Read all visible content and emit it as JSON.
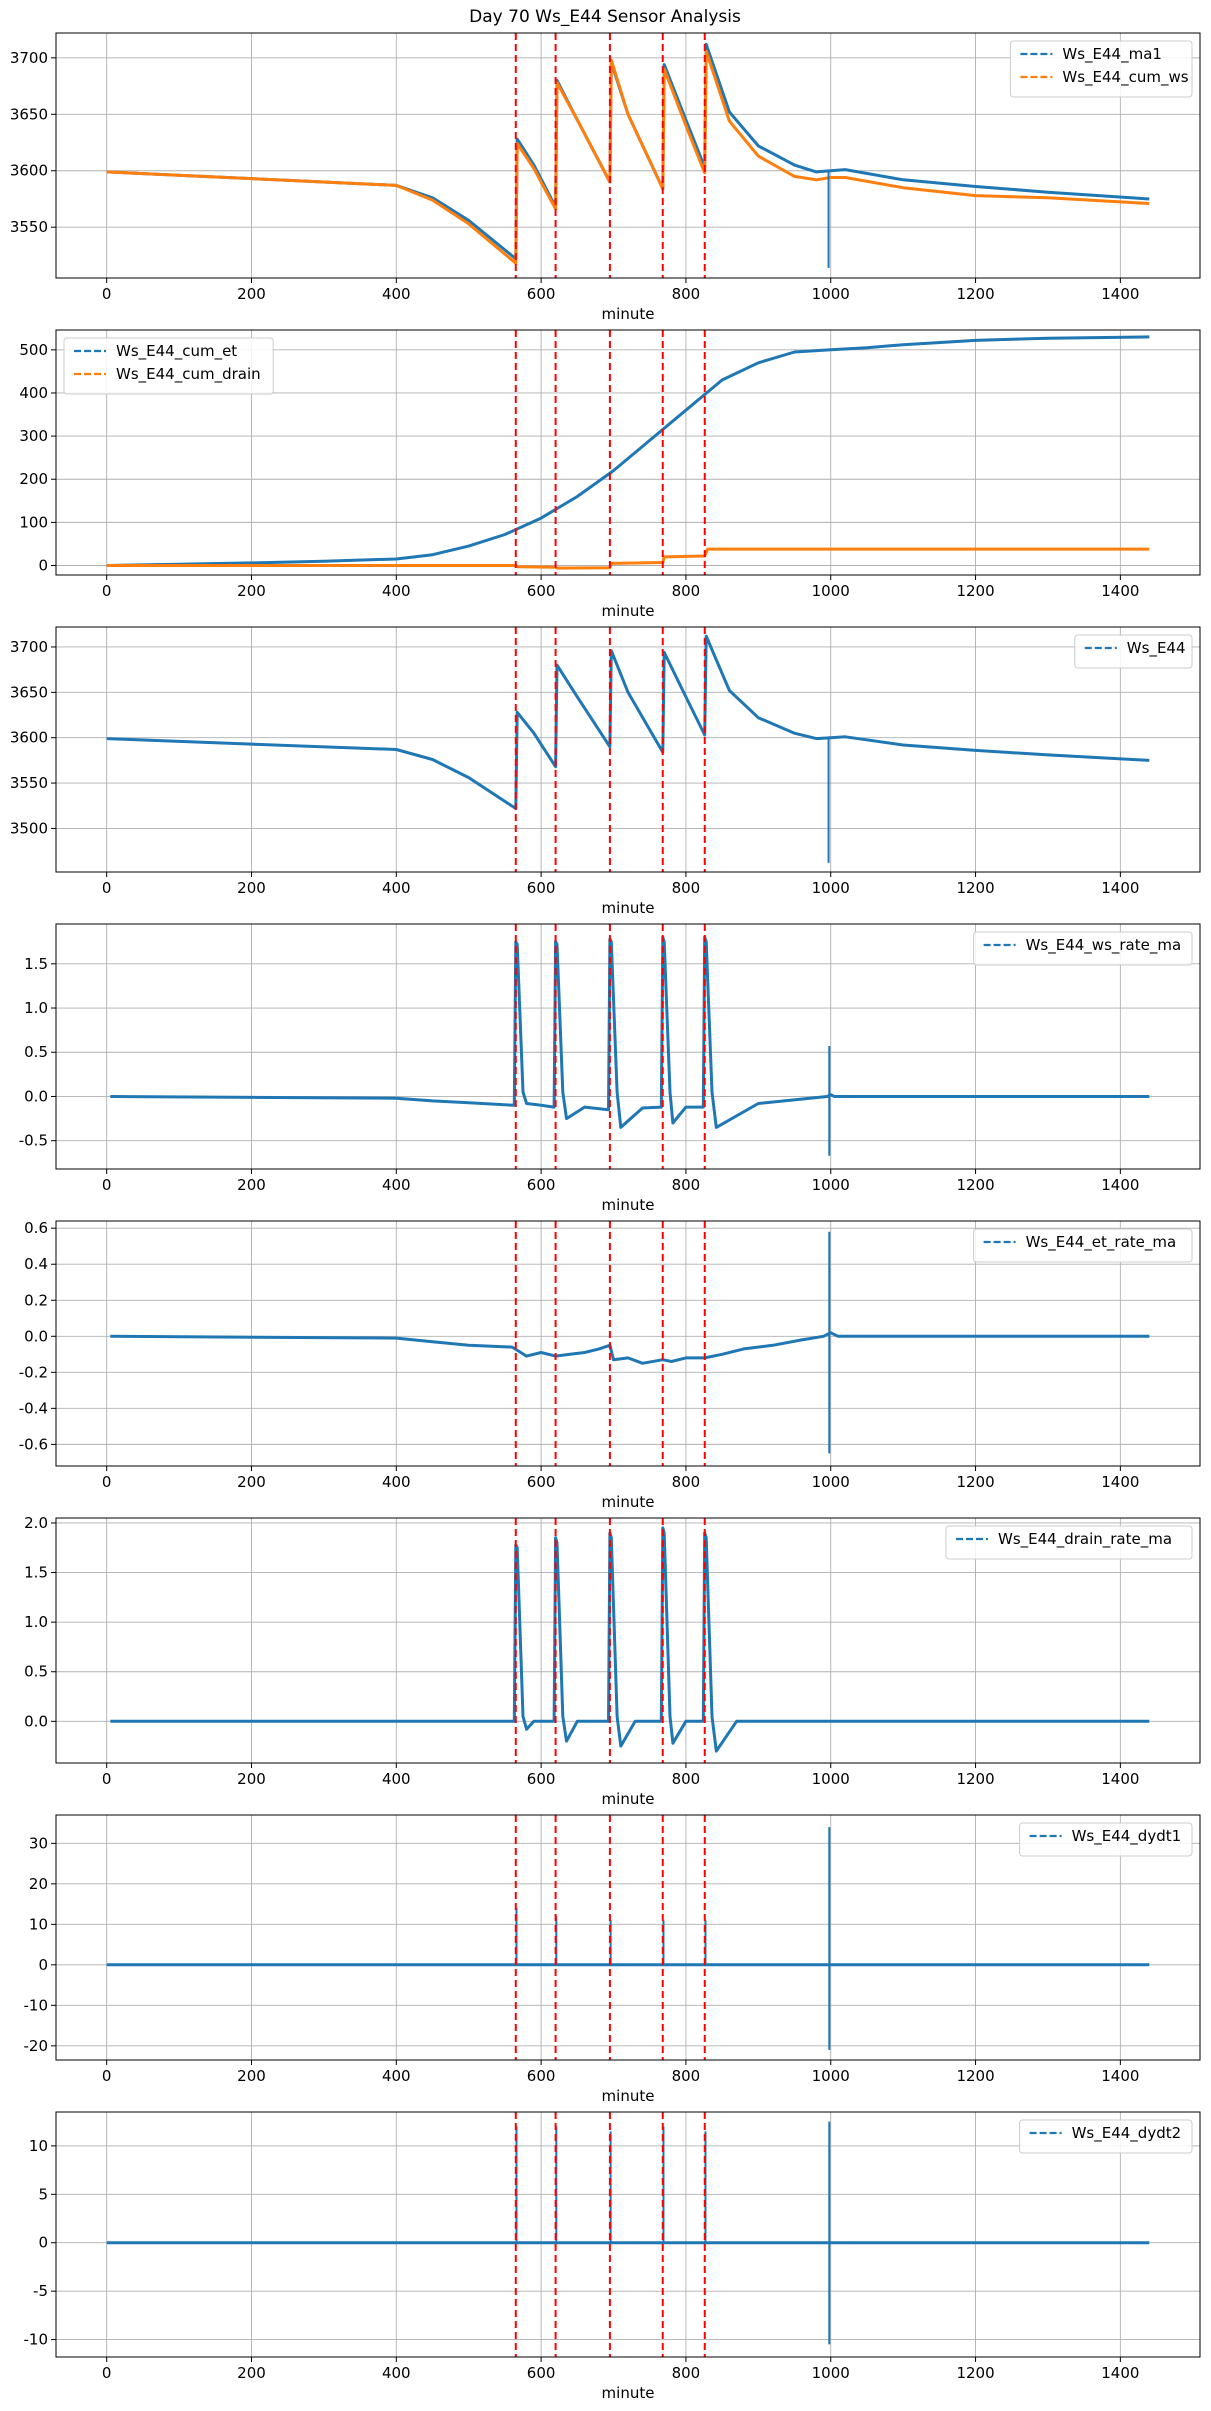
{
  "figure_title": "Day 70 Ws_E44 Sensor Analysis",
  "colors": {
    "blue": "#1f77b4",
    "orange": "#ff7f0e",
    "event_line": "#ff0000",
    "grid": "#b0b0b0"
  },
  "event_minutes": [
    565,
    620,
    695,
    768,
    826
  ],
  "chart_data": [
    {
      "type": "line",
      "xlabel": "minute",
      "xlim": [
        -70,
        1510
      ],
      "ylim": [
        3505,
        3722
      ],
      "xticks": [
        0,
        200,
        400,
        600,
        800,
        1000,
        1200,
        1400
      ],
      "yticks": [
        3550,
        3600,
        3650,
        3700
      ],
      "ytick_labels": [
        "3550",
        "3600",
        "3650",
        "3700"
      ],
      "legend": "upper right",
      "series": [
        {
          "name": "Ws_E44_ma1",
          "color": "#1f77b4",
          "x": [
            0,
            200,
            400,
            450,
            500,
            565,
            567,
            590,
            620,
            622,
            650,
            695,
            697,
            720,
            768,
            770,
            800,
            826,
            828,
            860,
            900,
            950,
            980,
            1000,
            1020,
            1100,
            1200,
            1300,
            1440
          ],
          "y": [
            3599,
            3593,
            3587,
            3576,
            3556,
            3522,
            3628,
            3605,
            3568,
            3680,
            3645,
            3590,
            3696,
            3650,
            3584,
            3694,
            3645,
            3603,
            3712,
            3652,
            3622,
            3605,
            3599,
            3600,
            3601,
            3592,
            3586,
            3581,
            3575
          ]
        },
        {
          "name": "Ws_E44_cum_ws",
          "color": "#ff7f0e",
          "x": [
            0,
            200,
            400,
            450,
            500,
            565,
            567,
            590,
            620,
            622,
            650,
            695,
            697,
            720,
            768,
            770,
            800,
            826,
            828,
            860,
            900,
            950,
            980,
            1000,
            1020,
            1100,
            1200,
            1300,
            1440
          ],
          "y": [
            3599,
            3593,
            3587,
            3574,
            3553,
            3518,
            3624,
            3602,
            3566,
            3678,
            3645,
            3590,
            3698,
            3650,
            3584,
            3690,
            3640,
            3598,
            3706,
            3644,
            3613,
            3595,
            3592,
            3594,
            3594,
            3585,
            3578,
            3576,
            3571
          ]
        }
      ],
      "spikes": [
        {
          "x": 997,
          "from": 3600,
          "to": 3514,
          "color": "#1f77b4"
        }
      ]
    },
    {
      "type": "line",
      "xlabel": "minute",
      "xlim": [
        -70,
        1510
      ],
      "ylim": [
        -22,
        546
      ],
      "xticks": [
        0,
        200,
        400,
        600,
        800,
        1000,
        1200,
        1400
      ],
      "yticks": [
        0,
        100,
        200,
        300,
        400,
        500
      ],
      "ytick_labels": [
        "0",
        "100",
        "200",
        "300",
        "400",
        "500"
      ],
      "legend": "upper left",
      "series": [
        {
          "name": "Ws_E44_cum_et",
          "color": "#1f77b4",
          "x": [
            0,
            100,
            200,
            300,
            400,
            450,
            500,
            550,
            600,
            650,
            700,
            750,
            800,
            850,
            900,
            950,
            1000,
            1050,
            1100,
            1200,
            1300,
            1440
          ],
          "y": [
            0,
            3,
            6,
            10,
            15,
            25,
            45,
            72,
            110,
            160,
            220,
            290,
            360,
            430,
            470,
            495,
            500,
            505,
            512,
            522,
            527,
            530
          ]
        },
        {
          "name": "Ws_E44_cum_drain",
          "color": "#ff7f0e",
          "x": [
            0,
            565,
            567,
            620,
            622,
            695,
            697,
            768,
            770,
            826,
            830,
            1440
          ],
          "y": [
            0,
            0,
            -3,
            -4,
            -6,
            -5,
            5,
            7,
            20,
            22,
            38,
            38
          ]
        }
      ]
    },
    {
      "type": "line",
      "xlabel": "minute",
      "xlim": [
        -70,
        1510
      ],
      "ylim": [
        3452,
        3722
      ],
      "xticks": [
        0,
        200,
        400,
        600,
        800,
        1000,
        1200,
        1400
      ],
      "yticks": [
        3500,
        3550,
        3600,
        3650,
        3700
      ],
      "ytick_labels": [
        "3500",
        "3550",
        "3600",
        "3650",
        "3700"
      ],
      "legend": "upper right",
      "series": [
        {
          "name": "Ws_E44",
          "color": "#1f77b4",
          "x": [
            0,
            200,
            400,
            450,
            500,
            565,
            567,
            590,
            620,
            622,
            650,
            695,
            697,
            720,
            768,
            770,
            800,
            826,
            828,
            860,
            900,
            950,
            980,
            1000,
            1020,
            1100,
            1200,
            1300,
            1440
          ],
          "y": [
            3599,
            3593,
            3587,
            3576,
            3556,
            3522,
            3628,
            3605,
            3568,
            3680,
            3645,
            3590,
            3696,
            3650,
            3584,
            3694,
            3645,
            3603,
            3712,
            3652,
            3622,
            3605,
            3599,
            3600,
            3601,
            3592,
            3586,
            3581,
            3575
          ]
        }
      ],
      "spikes": [
        {
          "x": 997,
          "from": 3600,
          "to": 3462,
          "color": "#1f77b4"
        }
      ]
    },
    {
      "type": "line",
      "xlabel": "minute",
      "xlim": [
        -70,
        1510
      ],
      "ylim": [
        -0.82,
        1.95
      ],
      "xticks": [
        0,
        200,
        400,
        600,
        800,
        1000,
        1200,
        1400
      ],
      "yticks": [
        -0.5,
        0.0,
        0.5,
        1.0,
        1.5
      ],
      "ytick_labels": [
        "-0.5",
        "0.0",
        "0.5",
        "1.0",
        "1.5"
      ],
      "legend": "upper right",
      "series": [
        {
          "name": "Ws_E44_ws_rate_ma",
          "color": "#1f77b4",
          "x": [
            5,
            400,
            450,
            500,
            563,
            565,
            567,
            575,
            580,
            600,
            618,
            620,
            622,
            630,
            635,
            660,
            693,
            695,
            697,
            705,
            710,
            740,
            766,
            768,
            770,
            778,
            782,
            800,
            824,
            826,
            828,
            836,
            842,
            900,
            995,
            1000,
            1005,
            1440
          ],
          "y": [
            0,
            -0.02,
            -0.05,
            -0.07,
            -0.1,
            1.75,
            1.72,
            0.05,
            -0.08,
            -0.1,
            -0.12,
            1.75,
            1.72,
            0.05,
            -0.25,
            -0.12,
            -0.15,
            1.78,
            1.75,
            0.05,
            -0.35,
            -0.13,
            -0.12,
            1.8,
            1.75,
            0.05,
            -0.3,
            -0.12,
            -0.12,
            1.8,
            1.75,
            0.05,
            -0.35,
            -0.08,
            0,
            0.02,
            0,
            0
          ]
        }
      ],
      "spikes": [
        {
          "x": 998,
          "from": 0.57,
          "to": -0.67,
          "color": "#1f77b4"
        }
      ]
    },
    {
      "type": "line",
      "xlabel": "minute",
      "xlim": [
        -70,
        1510
      ],
      "ylim": [
        -0.72,
        0.64
      ],
      "xticks": [
        0,
        200,
        400,
        600,
        800,
        1000,
        1200,
        1400
      ],
      "yticks": [
        -0.6,
        -0.4,
        -0.2,
        0.0,
        0.2,
        0.4,
        0.6
      ],
      "ytick_labels": [
        "-0.6",
        "-0.4",
        "-0.2",
        "0.0",
        "0.2",
        "0.4",
        "0.6"
      ],
      "legend": "upper right",
      "series": [
        {
          "name": "Ws_E44_et_rate_ma",
          "color": "#1f77b4",
          "x": [
            5,
            400,
            450,
            500,
            560,
            580,
            600,
            620,
            640,
            660,
            680,
            695,
            700,
            720,
            740,
            768,
            780,
            800,
            826,
            850,
            880,
            920,
            960,
            990,
            1000,
            1010,
            1440
          ],
          "y": [
            0,
            -0.01,
            -0.03,
            -0.05,
            -0.06,
            -0.11,
            -0.09,
            -0.11,
            -0.1,
            -0.09,
            -0.07,
            -0.05,
            -0.13,
            -0.12,
            -0.15,
            -0.13,
            -0.14,
            -0.12,
            -0.12,
            -0.1,
            -0.07,
            -0.05,
            -0.02,
            0,
            0.02,
            0,
            0
          ]
        }
      ],
      "spikes": [
        {
          "x": 998,
          "from": 0.58,
          "to": -0.65,
          "color": "#1f77b4"
        }
      ]
    },
    {
      "type": "line",
      "xlabel": "minute",
      "xlim": [
        -70,
        1510
      ],
      "ylim": [
        -0.42,
        2.05
      ],
      "xticks": [
        0,
        200,
        400,
        600,
        800,
        1000,
        1200,
        1400
      ],
      "yticks": [
        0.0,
        0.5,
        1.0,
        1.5,
        2.0
      ],
      "ytick_labels": [
        "0.0",
        "0.5",
        "1.0",
        "1.5",
        "2.0"
      ],
      "legend": "upper right",
      "series": [
        {
          "name": "Ws_E44_drain_rate_ma",
          "color": "#1f77b4",
          "x": [
            5,
            563,
            565,
            567,
            575,
            580,
            590,
            618,
            620,
            622,
            630,
            635,
            650,
            693,
            695,
            697,
            705,
            710,
            730,
            766,
            768,
            770,
            778,
            782,
            800,
            824,
            826,
            828,
            836,
            842,
            870,
            1440
          ],
          "y": [
            0,
            0,
            1.78,
            1.75,
            0.05,
            -0.08,
            0,
            0,
            1.85,
            1.8,
            0.05,
            -0.2,
            0,
            0,
            1.9,
            1.85,
            0.05,
            -0.25,
            0,
            0,
            1.95,
            1.9,
            0.05,
            -0.22,
            0,
            0,
            1.9,
            1.85,
            0.05,
            -0.3,
            0,
            0
          ]
        }
      ]
    },
    {
      "type": "line",
      "xlabel": "minute",
      "xlim": [
        -70,
        1510
      ],
      "ylim": [
        -23.5,
        37
      ],
      "xticks": [
        0,
        200,
        400,
        600,
        800,
        1000,
        1200,
        1400
      ],
      "yticks": [
        -20,
        -10,
        0,
        10,
        20,
        30
      ],
      "ytick_labels": [
        "-20",
        "-10",
        "0",
        "10",
        "20",
        "30"
      ],
      "legend": "upper right",
      "series": [
        {
          "name": "Ws_E44_dydt1",
          "color": "#1f77b4",
          "x": [
            0,
            1440
          ],
          "y": [
            0,
            0
          ]
        }
      ],
      "spikes": [
        {
          "x": 566,
          "from": 0,
          "to": 14,
          "color": "#1f77b4"
        },
        {
          "x": 621,
          "from": 0,
          "to": 12,
          "color": "#1f77b4"
        },
        {
          "x": 696,
          "from": 0,
          "to": 11,
          "color": "#1f77b4"
        },
        {
          "x": 769,
          "from": 0,
          "to": 11,
          "color": "#1f77b4"
        },
        {
          "x": 827,
          "from": 0,
          "to": 11,
          "color": "#1f77b4"
        },
        {
          "x": 998,
          "from": 34,
          "to": -21,
          "color": "#1f77b4"
        }
      ]
    },
    {
      "type": "line",
      "xlabel": "minute",
      "xlim": [
        -70,
        1510
      ],
      "ylim": [
        -11.8,
        13.5
      ],
      "xticks": [
        0,
        200,
        400,
        600,
        800,
        1000,
        1200,
        1400
      ],
      "yticks": [
        -10,
        -5,
        0,
        5,
        10
      ],
      "ytick_labels": [
        "-10",
        "-5",
        "0",
        "5",
        "10"
      ],
      "legend": "upper right",
      "series": [
        {
          "name": "Ws_E44_dydt2",
          "color": "#1f77b4",
          "x": [
            0,
            1440
          ],
          "y": [
            0,
            0
          ]
        }
      ],
      "spikes": [
        {
          "x": 566,
          "from": 0,
          "to": 12,
          "color": "#1f77b4"
        },
        {
          "x": 621,
          "from": 0,
          "to": 12,
          "color": "#1f77b4"
        },
        {
          "x": 696,
          "from": 0,
          "to": 11.5,
          "color": "#1f77b4"
        },
        {
          "x": 769,
          "from": 0,
          "to": 12,
          "color": "#1f77b4"
        },
        {
          "x": 827,
          "from": 0,
          "to": 11.5,
          "color": "#1f77b4"
        },
        {
          "x": 998,
          "from": 12.5,
          "to": -10.5,
          "color": "#1f77b4"
        }
      ]
    }
  ]
}
